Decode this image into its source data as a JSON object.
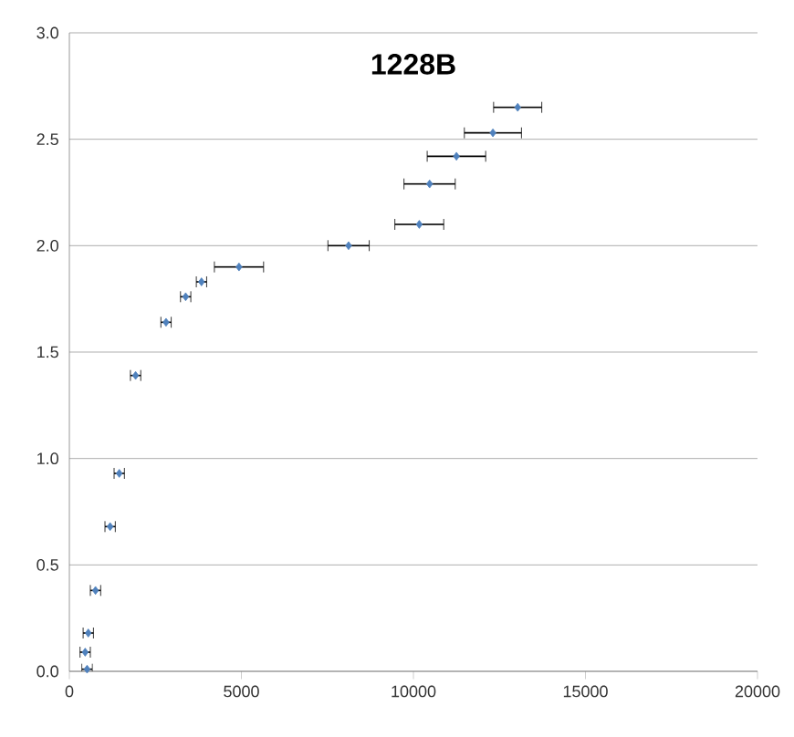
{
  "chart_data": {
    "type": "scatter",
    "title": "1228B",
    "x": [
      515,
      460,
      550,
      760,
      1185,
      1450,
      1925,
      2810,
      3380,
      3840,
      4930,
      8115,
      10170,
      10470,
      11250,
      12310,
      13030
    ],
    "values": [
      0.01,
      0.09,
      0.18,
      0.38,
      0.68,
      0.93,
      1.39,
      1.64,
      1.76,
      1.83,
      1.9,
      2.0,
      2.1,
      2.29,
      2.42,
      2.53,
      2.65
    ],
    "xerrors": [
      150,
      150,
      150,
      150,
      150,
      150,
      150,
      150,
      150,
      150,
      715,
      600,
      710,
      745,
      850,
      830,
      700
    ],
    "color": "#4f81bd",
    "marker": "diamond",
    "grid": "y",
    "xlim": [
      0,
      20000
    ],
    "xticks": [
      0,
      5000,
      10000,
      15000,
      20000
    ],
    "ylim": [
      0,
      3
    ],
    "yticks": [
      {
        "value": 0,
        "label": "0.0"
      },
      {
        "value": 0.5,
        "label": "0.5"
      },
      {
        "value": 1,
        "label": "1.0"
      },
      {
        "value": 1.5,
        "label": "1.5"
      },
      {
        "value": 2,
        "label": "2.0"
      },
      {
        "value": 2.5,
        "label": "2.5"
      },
      {
        "value": 3,
        "label": "3.0"
      }
    ]
  }
}
